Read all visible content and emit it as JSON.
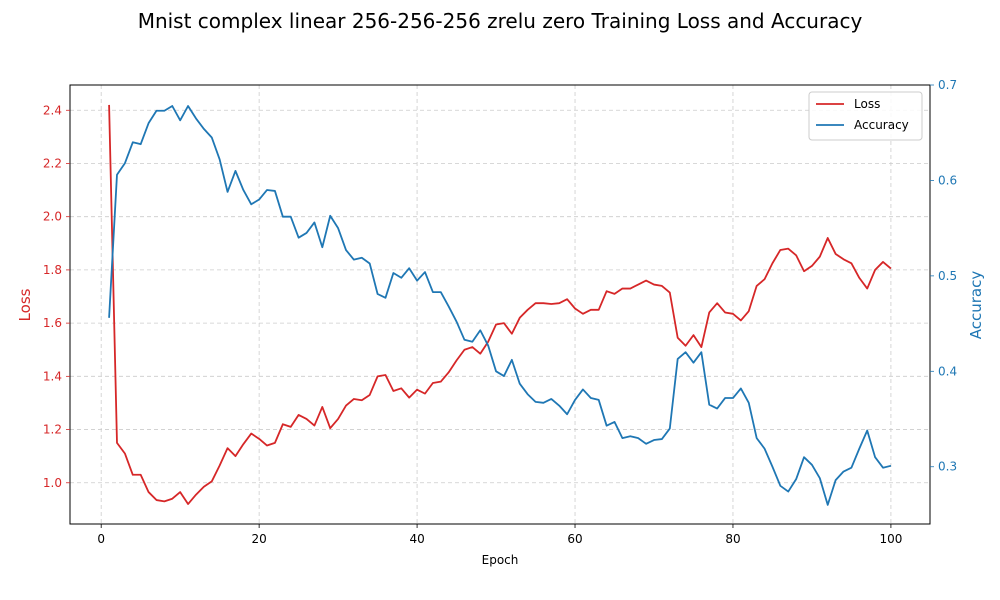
{
  "chart_data": {
    "type": "line",
    "title": "Mnist complex linear 256-256-256 zrelu zero Training Loss and Accuracy",
    "xlabel": "Epoch",
    "ylabel_left": "Loss",
    "ylabel_right": "Accuracy",
    "xlim": [
      -3.95,
      104.95
    ],
    "ylim_left": [
      0.845,
      2.495
    ],
    "ylim_right": [
      0.24,
      0.7
    ],
    "x_ticks": [
      0,
      20,
      40,
      60,
      80,
      100
    ],
    "y_ticks_left": [
      1.0,
      1.2,
      1.4,
      1.6,
      1.8,
      2.0,
      2.2,
      2.4
    ],
    "y_ticks_right": [
      0.3,
      0.4,
      0.5,
      0.6,
      0.7
    ],
    "grid": true,
    "legend_position": "top-right",
    "colors": {
      "loss": "#d62728",
      "accuracy": "#1f77b4"
    },
    "x": [
      1,
      2,
      3,
      4,
      5,
      6,
      7,
      8,
      9,
      10,
      11,
      12,
      13,
      14,
      15,
      16,
      17,
      18,
      19,
      20,
      21,
      22,
      23,
      24,
      25,
      26,
      27,
      28,
      29,
      30,
      31,
      32,
      33,
      34,
      35,
      36,
      37,
      38,
      39,
      40,
      41,
      42,
      43,
      44,
      45,
      46,
      47,
      48,
      49,
      50,
      51,
      52,
      53,
      54,
      55,
      56,
      57,
      58,
      59,
      60,
      61,
      62,
      63,
      64,
      65,
      66,
      67,
      68,
      69,
      70,
      71,
      72,
      73,
      74,
      75,
      76,
      77,
      78,
      79,
      80,
      81,
      82,
      83,
      84,
      85,
      86,
      87,
      88,
      89,
      90,
      91,
      92,
      93,
      94,
      95,
      96,
      97,
      98,
      99,
      100
    ],
    "series": [
      {
        "name": "Loss",
        "axis": "left",
        "values": [
          2.42,
          1.15,
          1.11,
          1.03,
          1.03,
          0.965,
          0.935,
          0.93,
          0.94,
          0.965,
          0.92,
          0.955,
          0.985,
          1.005,
          1.065,
          1.13,
          1.1,
          1.145,
          1.185,
          1.165,
          1.14,
          1.15,
          1.22,
          1.21,
          1.255,
          1.24,
          1.215,
          1.285,
          1.205,
          1.24,
          1.29,
          1.315,
          1.31,
          1.33,
          1.4,
          1.405,
          1.345,
          1.355,
          1.32,
          1.35,
          1.335,
          1.375,
          1.38,
          1.415,
          1.46,
          1.5,
          1.51,
          1.485,
          1.53,
          1.595,
          1.6,
          1.56,
          1.62,
          1.65,
          1.675,
          1.675,
          1.672,
          1.675,
          1.69,
          1.655,
          1.635,
          1.65,
          1.65,
          1.72,
          1.71,
          1.73,
          1.73,
          1.745,
          1.76,
          1.745,
          1.74,
          1.715,
          1.545,
          1.515,
          1.555,
          1.51,
          1.64,
          1.675,
          1.64,
          1.635,
          1.61,
          1.645,
          1.74,
          1.765,
          1.825,
          1.875,
          1.88,
          1.855,
          1.795,
          1.815,
          1.85,
          1.92,
          1.86,
          1.84,
          1.825,
          1.77,
          1.73,
          1.8,
          1.83,
          1.805
        ]
      },
      {
        "name": "Accuracy",
        "axis": "right",
        "values": [
          0.456,
          0.606,
          0.618,
          0.64,
          0.638,
          0.66,
          0.673,
          0.673,
          0.678,
          0.663,
          0.678,
          0.665,
          0.654,
          0.645,
          0.622,
          0.588,
          0.61,
          0.59,
          0.575,
          0.58,
          0.59,
          0.589,
          0.562,
          0.562,
          0.54,
          0.545,
          0.556,
          0.53,
          0.563,
          0.55,
          0.527,
          0.517,
          0.519,
          0.513,
          0.481,
          0.477,
          0.503,
          0.498,
          0.508,
          0.495,
          0.504,
          0.483,
          0.483,
          0.468,
          0.452,
          0.433,
          0.431,
          0.443,
          0.427,
          0.4,
          0.395,
          0.412,
          0.387,
          0.376,
          0.368,
          0.367,
          0.371,
          0.364,
          0.355,
          0.37,
          0.381,
          0.372,
          0.37,
          0.343,
          0.347,
          0.33,
          0.332,
          0.33,
          0.324,
          0.328,
          0.329,
          0.34,
          0.413,
          0.42,
          0.409,
          0.42,
          0.365,
          0.361,
          0.372,
          0.372,
          0.382,
          0.367,
          0.33,
          0.319,
          0.3,
          0.28,
          0.274,
          0.287,
          0.31,
          0.302,
          0.288,
          0.26,
          0.286,
          0.295,
          0.299,
          0.319,
          0.338,
          0.31,
          0.299,
          0.301
        ]
      }
    ]
  }
}
